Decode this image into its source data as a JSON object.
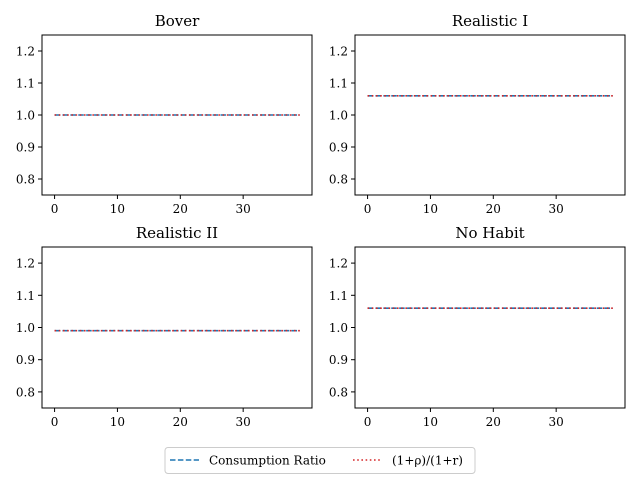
{
  "chart_data": [
    {
      "type": "line",
      "title": "Bover",
      "x": [
        0,
        39
      ],
      "xticks": [
        0,
        10,
        20,
        30
      ],
      "xlim": [
        -2,
        40.95
      ],
      "yticks": [
        0.8,
        0.9,
        1.0,
        1.1,
        1.2
      ],
      "ytick_labels": [
        "0.8",
        "0.9",
        "1.0",
        "1.1",
        "1.2"
      ],
      "ylim": [
        0.75,
        1.25
      ],
      "series": [
        {
          "name": "Consumption Ratio",
          "style": "dashed",
          "color": "#1f77b4",
          "values": [
            1.0,
            1.0
          ]
        },
        {
          "name": "(1+ρ)/(1+r)",
          "style": "dotted",
          "color": "#d62728",
          "values": [
            1.0,
            1.0
          ]
        }
      ]
    },
    {
      "type": "line",
      "title": "Realistic I",
      "x": [
        0,
        39
      ],
      "xticks": [
        0,
        10,
        20,
        30
      ],
      "xlim": [
        -2,
        40.95
      ],
      "yticks": [
        0.8,
        0.9,
        1.0,
        1.1,
        1.2
      ],
      "ytick_labels": [
        "0.8",
        "0.9",
        "1.0",
        "1.1",
        "1.2"
      ],
      "ylim": [
        0.75,
        1.25
      ],
      "series": [
        {
          "name": "Consumption Ratio",
          "style": "dashed",
          "color": "#1f77b4",
          "values": [
            1.06,
            1.06
          ]
        },
        {
          "name": "(1+ρ)/(1+r)",
          "style": "dotted",
          "color": "#d62728",
          "values": [
            1.06,
            1.06
          ]
        }
      ]
    },
    {
      "type": "line",
      "title": "Realistic II",
      "x": [
        0,
        39
      ],
      "xticks": [
        0,
        10,
        20,
        30
      ],
      "xlim": [
        -2,
        40.95
      ],
      "yticks": [
        0.8,
        0.9,
        1.0,
        1.1,
        1.2
      ],
      "ytick_labels": [
        "0.8",
        "0.9",
        "1.0",
        "1.1",
        "1.2"
      ],
      "ylim": [
        0.75,
        1.25
      ],
      "series": [
        {
          "name": "Consumption Ratio",
          "style": "dashed",
          "color": "#1f77b4",
          "values": [
            0.99,
            0.99
          ]
        },
        {
          "name": "(1+ρ)/(1+r)",
          "style": "dotted",
          "color": "#d62728",
          "values": [
            0.99,
            0.99
          ]
        }
      ]
    },
    {
      "type": "line",
      "title": "No Habit",
      "x": [
        0,
        39
      ],
      "xticks": [
        0,
        10,
        20,
        30
      ],
      "xlim": [
        -2,
        40.95
      ],
      "yticks": [
        0.8,
        0.9,
        1.0,
        1.1,
        1.2
      ],
      "ytick_labels": [
        "0.8",
        "0.9",
        "1.0",
        "1.1",
        "1.2"
      ],
      "ylim": [
        0.75,
        1.25
      ],
      "series": [
        {
          "name": "Consumption Ratio",
          "style": "dashed",
          "color": "#1f77b4",
          "values": [
            1.06,
            1.06
          ]
        },
        {
          "name": "(1+ρ)/(1+r)",
          "style": "dotted",
          "color": "#d62728",
          "values": [
            1.06,
            1.06
          ]
        }
      ]
    }
  ],
  "legend": {
    "placement": "bottom-center",
    "items": [
      {
        "label": "Consumption Ratio",
        "style": "dashed",
        "color": "#1f77b4"
      },
      {
        "label": "(1+ρ)/(1+r)",
        "style": "dotted",
        "color": "#d62728"
      }
    ]
  }
}
